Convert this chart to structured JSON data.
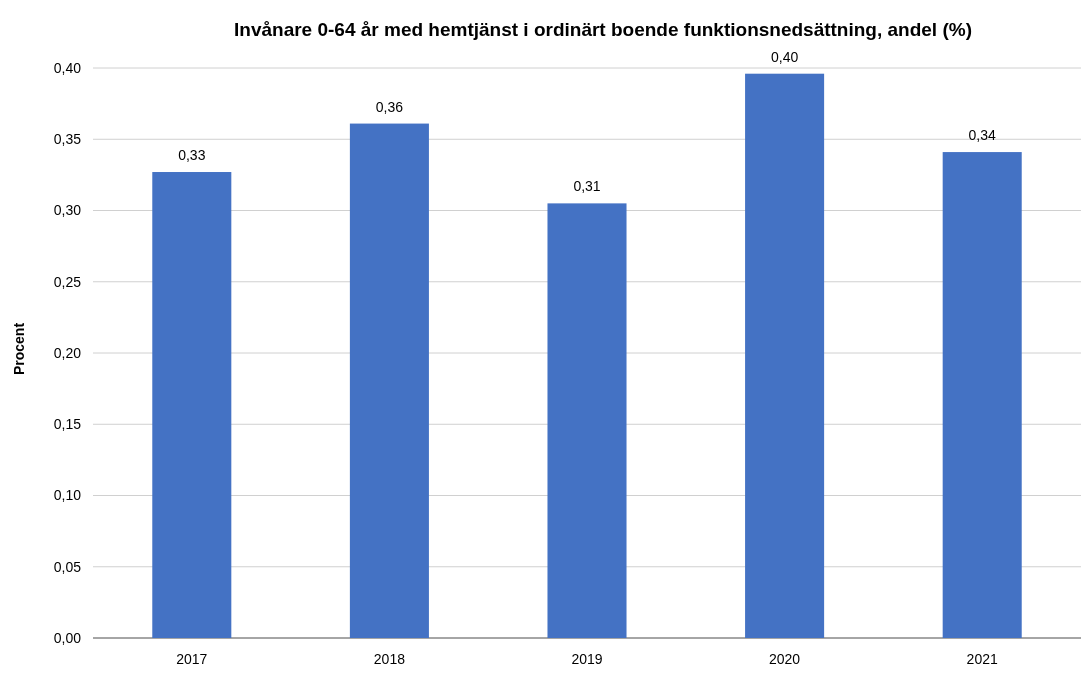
{
  "chart_data": {
    "type": "bar",
    "title": "Invånare 0-64 år med hemtjänst i ordinärt boende funktionsnedsättning, andel (%)",
    "ylabel": "Procent",
    "categories": [
      "2017",
      "2018",
      "2019",
      "2020",
      "2021"
    ],
    "values": [
      0.327,
      0.361,
      0.305,
      0.396,
      0.341
    ],
    "value_labels": [
      "0,33",
      "0,36",
      "0,31",
      "0,40",
      "0,34"
    ],
    "color": "#4472c4",
    "ylim": [
      0,
      0.4
    ],
    "yticks": [
      {
        "value": 0,
        "label": "0,00"
      },
      {
        "value": 0.05,
        "label": "0,05"
      },
      {
        "value": 0.1,
        "label": "0,10"
      },
      {
        "value": 0.15,
        "label": "0,15"
      },
      {
        "value": 0.2,
        "label": "0,20"
      },
      {
        "value": 0.25,
        "label": "0,25"
      },
      {
        "value": 0.3,
        "label": "0,30"
      },
      {
        "value": 0.35,
        "label": "0,35"
      },
      {
        "value": 0.4,
        "label": "0,40"
      }
    ],
    "grid": "y"
  }
}
